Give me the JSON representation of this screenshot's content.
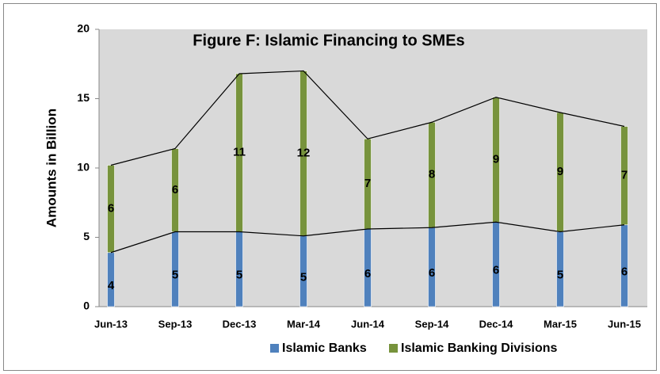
{
  "chart_data": {
    "type": "bar",
    "stacked": true,
    "title": "Figure F:  Islamic Financing to SMEs",
    "y_label": "Amounts in Billion",
    "categories": [
      "Jun-13",
      "Sep-13",
      "Dec-13",
      "Mar-14",
      "Jun-14",
      "Sep-14",
      "Dec-14",
      "Mar-15",
      "Jun-15"
    ],
    "series": [
      {
        "name": "Islamic Banks",
        "color": "#4f81bd",
        "values": [
          3.9,
          5.4,
          5.4,
          5.1,
          5.6,
          5.7,
          6.1,
          5.4,
          5.9
        ],
        "value_labels": [
          "4",
          "5",
          "5",
          "5",
          "6",
          "6",
          "6",
          "5",
          "6"
        ]
      },
      {
        "name": "Islamic Banking Divisions",
        "color": "#77933c",
        "values": [
          6.3,
          6.0,
          11.4,
          11.9,
          6.5,
          7.6,
          9.0,
          8.6,
          7.1
        ],
        "value_labels": [
          "6",
          "6",
          "11",
          "12",
          "7",
          "8",
          "9",
          "9",
          "7"
        ]
      }
    ],
    "ylim": [
      0,
      20
    ],
    "yticks": [
      0,
      5,
      10,
      15,
      20
    ],
    "legend": "bottom"
  }
}
